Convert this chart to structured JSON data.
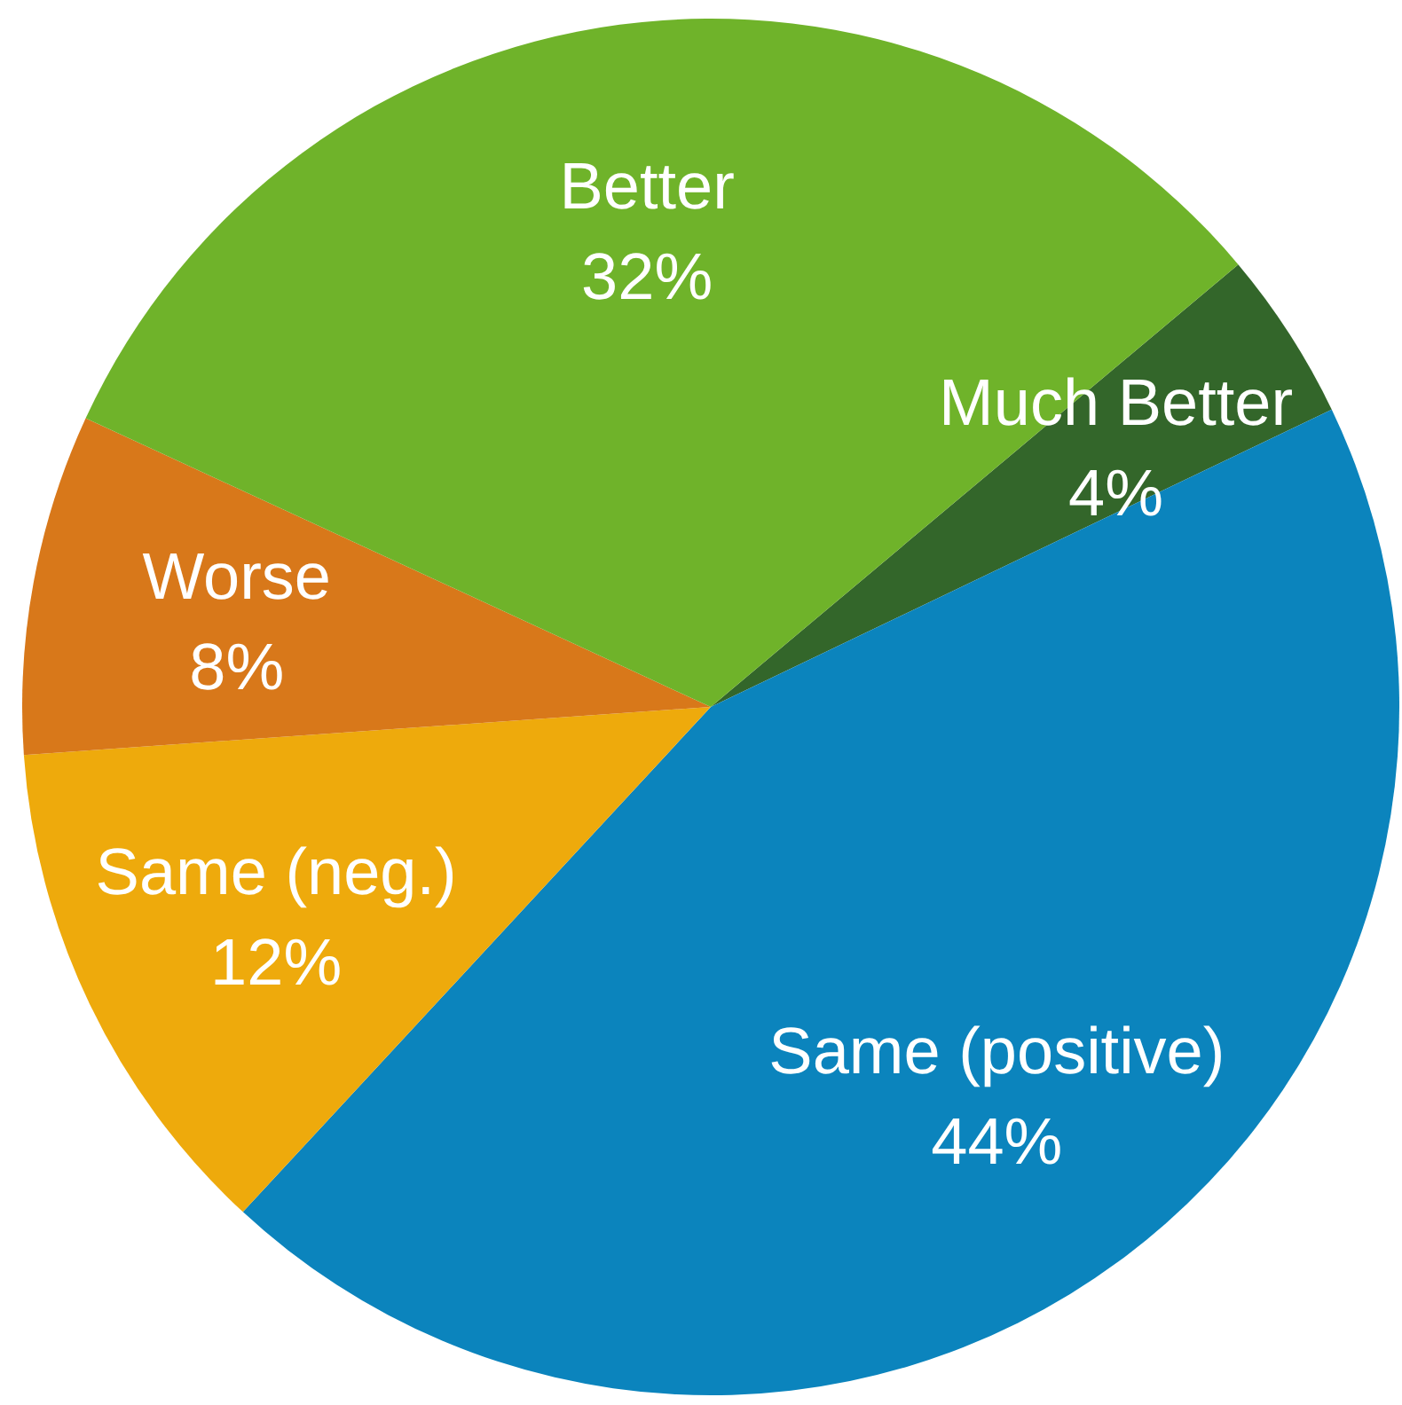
{
  "chart_data": {
    "type": "pie",
    "categories": [
      "Much Better",
      "Same (positive)",
      "Same (neg.)",
      "Worse",
      "Better"
    ],
    "values": [
      4,
      44,
      12,
      8,
      32
    ],
    "colors": [
      "#33662a",
      "#0b84bd",
      "#eeaa0c",
      "#d8781a",
      "#6fb32a"
    ],
    "value_labels": [
      "4%",
      "44%",
      "12%",
      "8%",
      "32%"
    ]
  }
}
